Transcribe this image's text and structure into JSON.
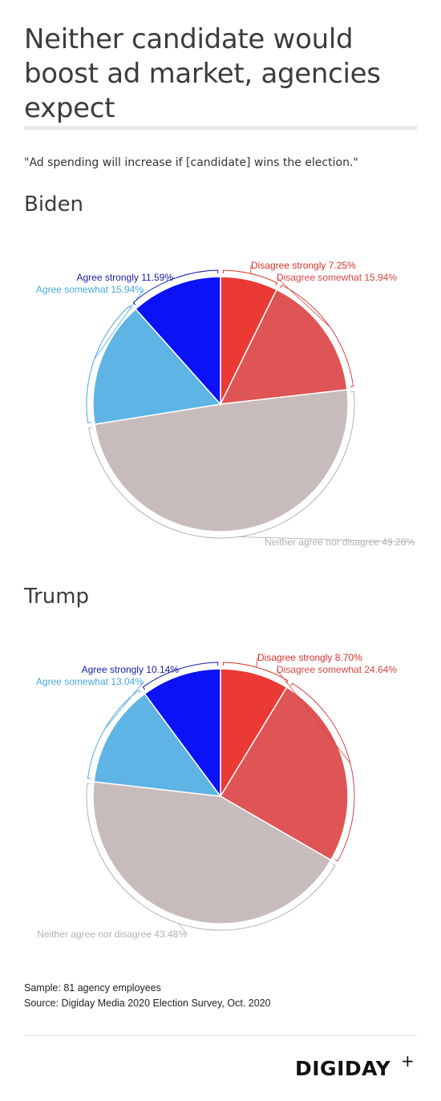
{
  "header": {
    "title": "Neither candidate would boost ad market, agencies expect",
    "subtitle": "\"Ad spending will increase if [candidate] wins the election.\""
  },
  "chart_data": [
    {
      "type": "pie",
      "title": "Biden",
      "slices": [
        {
          "label": "Disagree strongly",
          "value": 7.25,
          "display": "Disagree strongly 7.25%",
          "color": "#ea3a33"
        },
        {
          "label": "Disagree somewhat",
          "value": 15.94,
          "display": "Disagree somewhat 15.94%",
          "color": "#df5455"
        },
        {
          "label": "Neither agree nor disagree",
          "value": 49.28,
          "display": "Neither agree nor disagree 49.28%",
          "color": "#c8bbbb"
        },
        {
          "label": "Agree somewhat",
          "value": 15.94,
          "display": "Agree somewhat 15.94%",
          "color": "#5eb4e4"
        },
        {
          "label": "Agree strongly",
          "value": 11.59,
          "display": "Agree strongly 11.59%",
          "color": "#0b12f5"
        }
      ]
    },
    {
      "type": "pie",
      "title": "Trump",
      "slices": [
        {
          "label": "Disagree strongly",
          "value": 8.7,
          "display": "Disagree strongly 8.70%",
          "color": "#ea3a33"
        },
        {
          "label": "Disagree somewhat",
          "value": 24.64,
          "display": "Disagree somewhat 24.64%",
          "color": "#df5455"
        },
        {
          "label": "Neither agree nor disagree",
          "value": 43.48,
          "display": "Neither agree nor disagree 43.48%",
          "color": "#c8bbbb"
        },
        {
          "label": "Agree somewhat",
          "value": 13.04,
          "display": "Agree somewhat 13.04%",
          "color": "#5eb4e4"
        },
        {
          "label": "Agree strongly",
          "value": 10.14,
          "display": "Agree strongly 10.14%",
          "color": "#0b12f5"
        }
      ]
    }
  ],
  "footer": {
    "sample": "Sample: 81 agency employees",
    "source": "Source: Digiday Media 2020 Election Survey, Oct. 2020",
    "logo": "DIGIDAY",
    "logo_plus": "+"
  }
}
